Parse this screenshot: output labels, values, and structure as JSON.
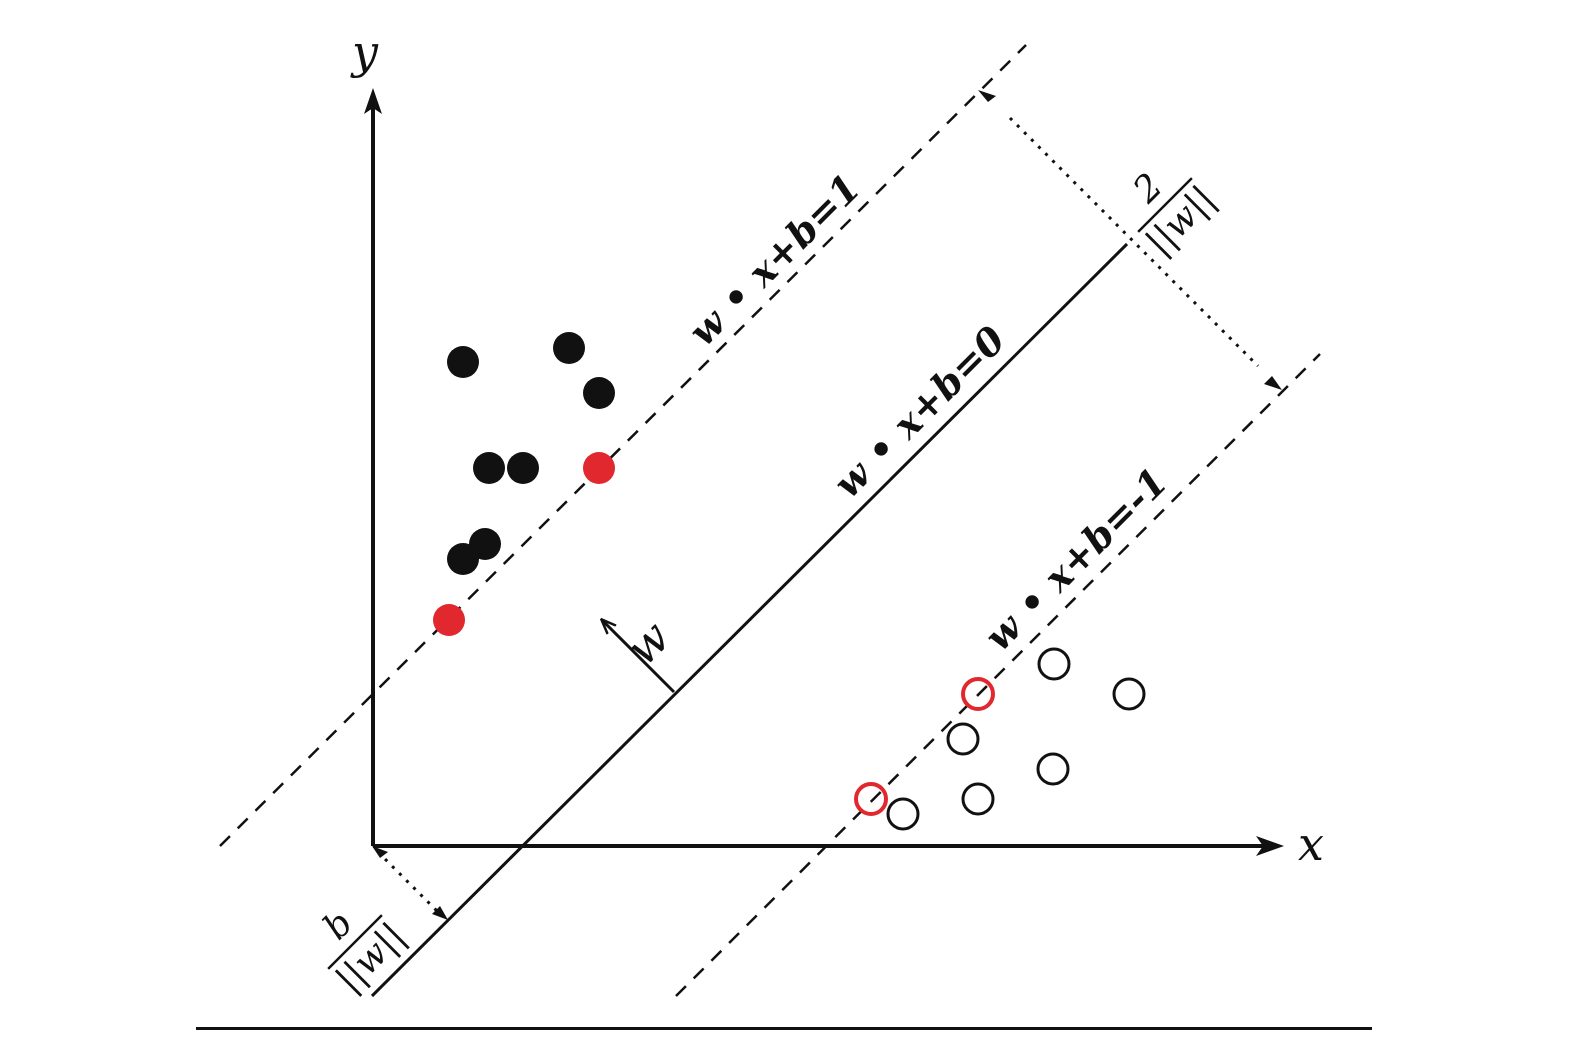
{
  "labels": {
    "y_axis": "y",
    "x_axis": "x",
    "normal_vector": "w"
  },
  "equations": {
    "upper_margin": "w • x+b=1",
    "hyperplane": "w • x+b=0",
    "lower_margin": "w • x+b=-1"
  },
  "fractions": {
    "margin_numerator": "2",
    "margin_denominator": "||w||",
    "offset_numerator": "b",
    "offset_denominator": "||w||"
  },
  "colors": {
    "ink": "#111111",
    "support_vector": "#e0282e"
  },
  "points": {
    "positive_class": "filled-black-circle",
    "negative_class": "hollow-black-circle",
    "support_vectors": "red"
  }
}
